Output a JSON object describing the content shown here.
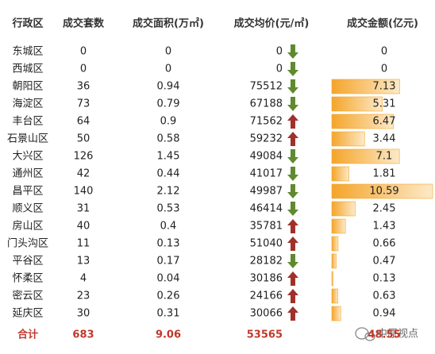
{
  "table": {
    "header": [
      "行政区",
      "成交套数",
      "成交面积(万㎡)",
      "成交均价(元/㎡)",
      "成交金额(亿元)"
    ],
    "rows": [
      [
        "东城区",
        0,
        0,
        0,
        0
      ],
      [
        "西城区",
        0,
        0,
        0,
        0
      ],
      [
        "朝阳区",
        36,
        0.94,
        75512,
        7.13
      ],
      [
        "海淀区",
        73,
        0.79,
        67188,
        5.31
      ],
      [
        "丰台区",
        64,
        0.9,
        71562,
        6.47
      ],
      [
        "石景山区",
        50,
        0.58,
        59232,
        3.44
      ],
      [
        "大兴区",
        126,
        1.45,
        49084,
        7.1
      ],
      [
        "通州区",
        42,
        0.44,
        41017,
        1.81
      ],
      [
        "昌平区",
        140,
        2.12,
        49987,
        10.59
      ],
      [
        "顺义区",
        31,
        0.53,
        46414,
        2.45
      ],
      [
        "房山区",
        40,
        0.4,
        35781,
        1.43
      ],
      [
        "门头沟区",
        11,
        0.13,
        51040,
        0.66
      ],
      [
        "平谷区",
        13,
        0.17,
        28182,
        0.47
      ],
      [
        "怀柔区",
        4,
        0.04,
        30186,
        0.13
      ],
      [
        "密云区",
        23,
        0.26,
        24166,
        0.63
      ],
      [
        "延庆区",
        30,
        0.31,
        30066,
        0.94
      ]
    ],
    "trend": [
      "down",
      "down",
      "down",
      "down",
      "up",
      "up",
      "down",
      "down",
      "down",
      "down",
      "up",
      "up",
      "down",
      "up",
      "up",
      "up"
    ],
    "total": [
      "合计",
      683,
      9.06,
      53565,
      48.55
    ],
    "bar_color": "#f4a52a",
    "up_color": "#a0312a",
    "down_color": "#5f8a2e"
  },
  "watermark": "中原视点"
}
